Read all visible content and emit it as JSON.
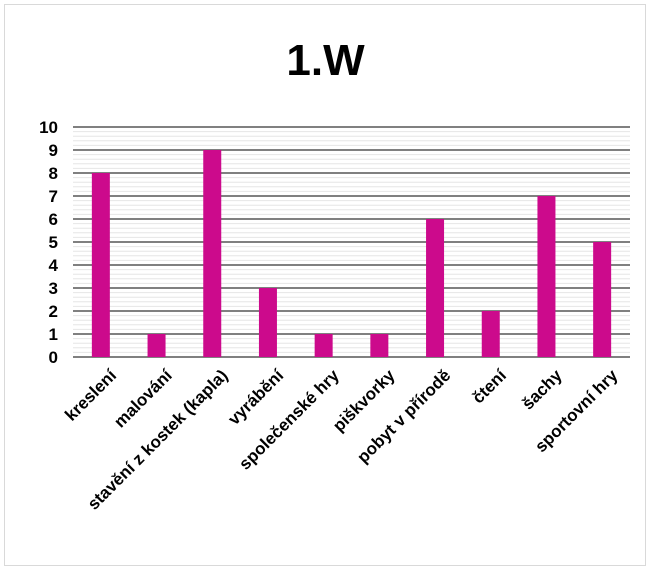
{
  "chart_data": {
    "type": "bar",
    "title": "1.W",
    "categories": [
      "kreslení",
      "malování",
      "stavění z kostek (kapla)",
      "vyrábění",
      "společenské hry",
      "piškvorky",
      "pobyt v přírodě",
      "čtení",
      "šachy",
      "sportovní hry"
    ],
    "values": [
      8,
      1,
      9,
      3,
      1,
      1,
      6,
      2,
      7,
      5
    ],
    "ylim": [
      0,
      10
    ],
    "yticks": [
      "0",
      "1",
      "2",
      "3",
      "4",
      "5",
      "6",
      "7",
      "8",
      "9",
      "10"
    ],
    "bar_color": "#cc0a8c",
    "grid": true,
    "legend": false
  }
}
